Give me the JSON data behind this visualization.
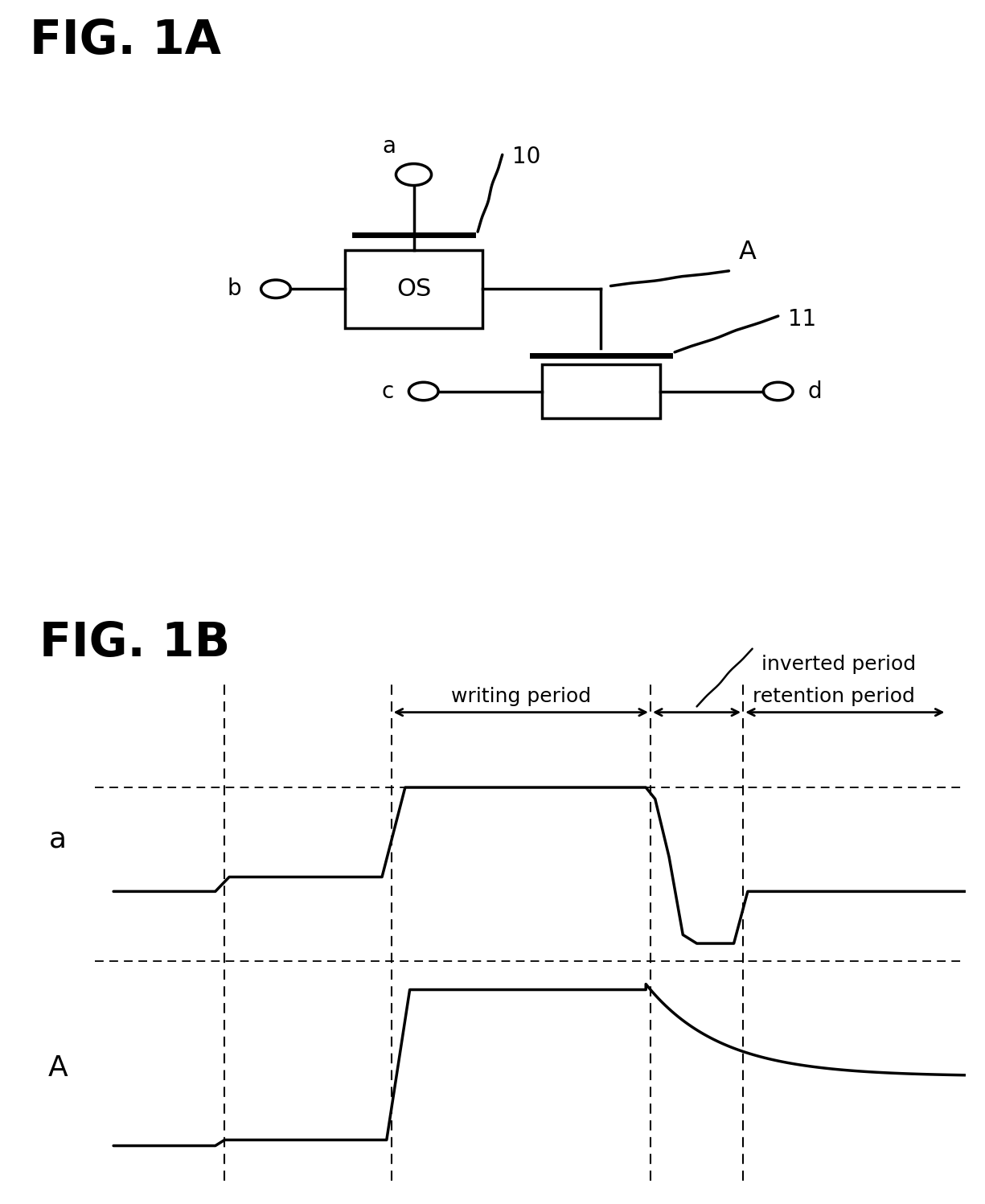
{
  "fig1a_title": "FIG. 1A",
  "fig1b_title": "FIG. 1B",
  "bg_color": "#ffffff",
  "line_color": "#000000",
  "label_a": "a",
  "label_b": "b",
  "label_c": "c",
  "label_d": "d",
  "label_A": "A",
  "label_10": "10",
  "label_11": "11",
  "label_OS": "OS",
  "period_labels": [
    "writing period",
    "inverted period",
    "retention period"
  ],
  "waveform_labels": [
    "a",
    "A"
  ],
  "font_size_title": 42,
  "font_size_label": 20,
  "font_size_period": 18
}
